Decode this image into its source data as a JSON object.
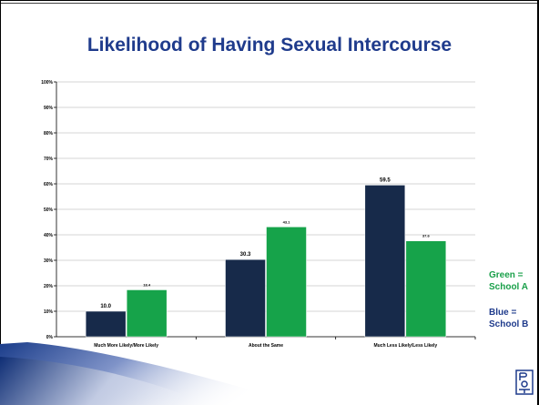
{
  "slide": {
    "title": "Likelihood of Having Sexual Intercourse",
    "legend_green": "Green = School A",
    "legend_blue": "Blue = School B"
  },
  "colors": {
    "school_b": "#172a4a",
    "school_a": "#16a34a",
    "title": "#1f3b8c"
  },
  "icons": {
    "logo": "ppt-logo-icon"
  },
  "chart_data": {
    "type": "bar",
    "categories": [
      "Much More Likely/More Likely",
      "About the Same",
      "Much Less Likely/Less Likely"
    ],
    "series": [
      {
        "values": [
          10.0,
          30.3,
          59.5
        ],
        "labels": [
          "10.0",
          "30.3",
          "59.5"
        ],
        "color": "#172a4a"
      },
      {
        "values": [
          18.4,
          43.1,
          37.6
        ],
        "labels": [
          "18.4",
          "43.1",
          "37.6"
        ],
        "color": "#16a34a"
      }
    ],
    "y_ticks": [
      "0%",
      "10%",
      "20%",
      "30%",
      "40%",
      "50%",
      "60%",
      "70%",
      "80%",
      "90%",
      "100%"
    ],
    "ylim": [
      0,
      100
    ],
    "grid": true,
    "legend": "right"
  }
}
